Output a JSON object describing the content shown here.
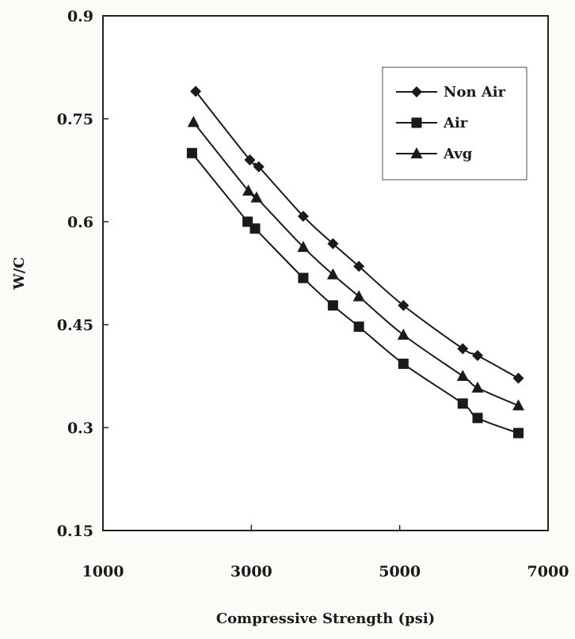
{
  "chart_data": {
    "type": "line",
    "title": "",
    "xlabel": "Compressive Strength (psi)",
    "ylabel": "W/C",
    "xlim": [
      1000,
      7000
    ],
    "ylim": [
      0.15,
      0.9
    ],
    "x_ticks": [
      1000,
      3000,
      5000,
      7000
    ],
    "x_tick_labels": [
      "1000",
      "3000",
      "5000",
      "7000"
    ],
    "y_ticks": [
      0.15,
      0.3,
      0.45,
      0.6,
      0.75,
      0.9
    ],
    "y_tick_labels": [
      "0.15",
      "0.3",
      "0.45",
      "0.6",
      "0.75",
      "0.9"
    ],
    "grid": false,
    "legend_position": "top-right",
    "series": [
      {
        "name": "Non Air",
        "marker": "diamond",
        "color": "#1a1a1a",
        "x": [
          2250,
          2980,
          3100,
          3700,
          4100,
          4450,
          5050,
          5850,
          6050,
          6600
        ],
        "y": [
          0.79,
          0.69,
          0.68,
          0.608,
          0.568,
          0.535,
          0.478,
          0.415,
          0.405,
          0.372
        ]
      },
      {
        "name": "Air",
        "marker": "square",
        "color": "#1a1a1a",
        "x": [
          2200,
          2950,
          3050,
          3700,
          4100,
          4450,
          5050,
          5850,
          6050,
          6600
        ],
        "y": [
          0.7,
          0.6,
          0.59,
          0.518,
          0.478,
          0.447,
          0.393,
          0.335,
          0.314,
          0.292
        ]
      },
      {
        "name": "Avg",
        "marker": "triangle",
        "color": "#1a1a1a",
        "x": [
          2220,
          2960,
          3070,
          3700,
          4100,
          4450,
          5050,
          5850,
          6050,
          6600
        ],
        "y": [
          0.745,
          0.645,
          0.635,
          0.563,
          0.523,
          0.491,
          0.435,
          0.375,
          0.358,
          0.332
        ]
      }
    ]
  }
}
